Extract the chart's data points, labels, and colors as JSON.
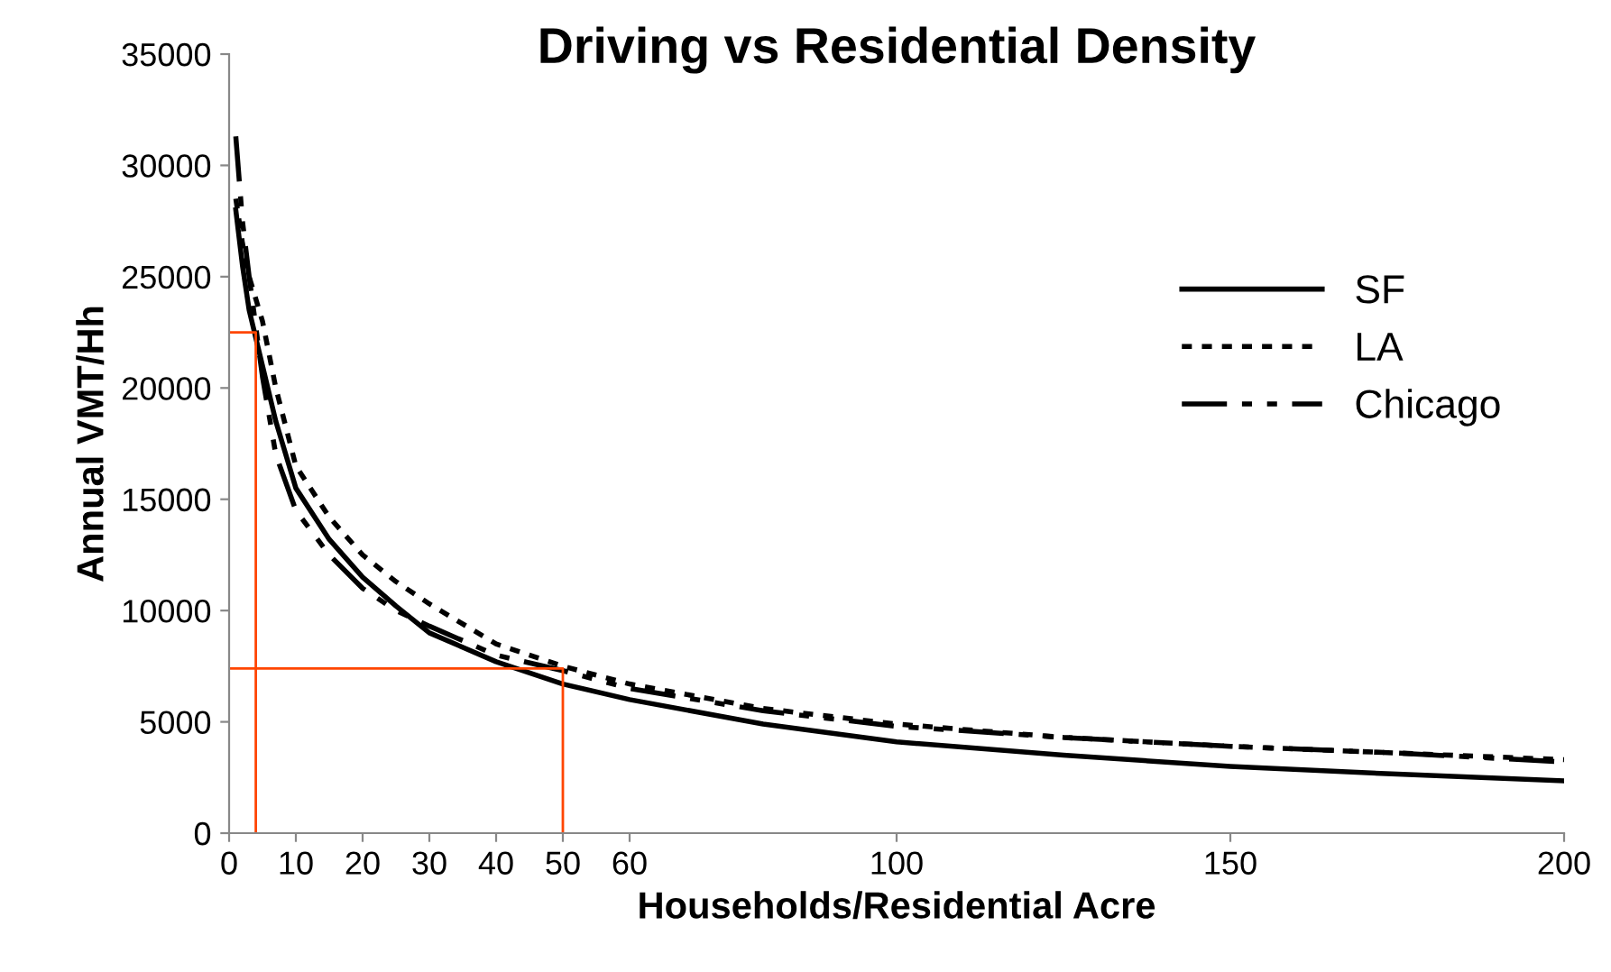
{
  "chart_data": {
    "type": "line",
    "title": "Driving vs Residential Density",
    "xlabel": "Households/Residential Acre",
    "ylabel": "Annual VMT/Hh",
    "xlim": [
      0,
      200
    ],
    "ylim": [
      0,
      35000
    ],
    "xticks": [
      0,
      10,
      20,
      30,
      40,
      50,
      60,
      100,
      150,
      200
    ],
    "yticks": [
      0,
      5000,
      10000,
      15000,
      20000,
      25000,
      30000,
      35000
    ],
    "grid": false,
    "legend": "right",
    "series": [
      {
        "name": "SF",
        "color": "#000000",
        "line_style": "solid",
        "x": [
          1,
          2,
          3,
          5,
          7,
          10,
          15,
          20,
          25,
          30,
          40,
          50,
          60,
          80,
          100,
          125,
          150,
          175,
          200
        ],
        "values": [
          28000,
          25500,
          23500,
          21000,
          18500,
          15500,
          13200,
          11500,
          10200,
          9000,
          7700,
          6700,
          6000,
          4900,
          4100,
          3500,
          3000,
          2650,
          2350
        ]
      },
      {
        "name": "LA",
        "color": "#000000",
        "line_style": "dotted",
        "x": [
          1,
          2,
          3,
          5,
          7,
          10,
          15,
          20,
          25,
          30,
          40,
          50,
          60,
          80,
          100,
          125,
          150,
          175,
          200
        ],
        "values": [
          28500,
          26500,
          25000,
          23000,
          20000,
          16500,
          14200,
          12500,
          11300,
          10300,
          8500,
          7500,
          6700,
          5600,
          4900,
          4300,
          3900,
          3600,
          3300
        ]
      },
      {
        "name": "Chicago",
        "color": "#000000",
        "line_style": "dashed",
        "x": [
          1,
          2,
          3,
          5,
          7,
          10,
          15,
          20,
          25,
          30,
          40,
          50,
          60,
          80,
          100,
          125,
          150,
          175,
          200
        ],
        "values": [
          31300,
          27500,
          25000,
          20500,
          17000,
          14500,
          12500,
          11000,
          10000,
          9300,
          8000,
          7300,
          6500,
          5500,
          4800,
          4300,
          3900,
          3600,
          3200
        ]
      },
      {
        "color": "#ff4500",
        "line_style": "solid",
        "x": [
          0,
          4,
          4
        ],
        "values": [
          22500,
          22500,
          0
        ]
      },
      {
        "color": "#ff4500",
        "line_style": "solid",
        "x": [
          0,
          50,
          50
        ],
        "values": [
          7400,
          7400,
          0
        ]
      }
    ]
  }
}
